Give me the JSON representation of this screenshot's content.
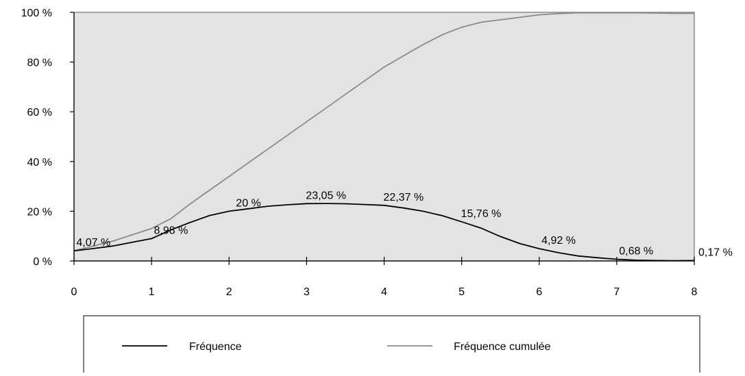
{
  "chart_data": {
    "type": "line",
    "title": "",
    "xlabel": "",
    "ylabel": "",
    "xlim": [
      0,
      8
    ],
    "ylim": [
      0,
      100
    ],
    "x_ticks": [
      "0",
      "1",
      "2",
      "3",
      "4",
      "5",
      "6",
      "7",
      "8"
    ],
    "y_ticks": [
      "0 %",
      "20 %",
      "40 %",
      "60 %",
      "80 %",
      "100 %"
    ],
    "y_tick_values": [
      0,
      20,
      40,
      60,
      80,
      100
    ],
    "grid": false,
    "plot_background": "#e3e3e3",
    "legend_position": "bottom",
    "series": [
      {
        "name": "Fréquence",
        "color": "#000000",
        "x": [
          0,
          0.25,
          0.5,
          0.75,
          1,
          1.25,
          1.5,
          1.75,
          2,
          2.25,
          2.5,
          2.75,
          3,
          3.25,
          3.5,
          3.75,
          4,
          4.25,
          4.5,
          4.75,
          5,
          5.25,
          5.5,
          5.75,
          6,
          6.25,
          6.5,
          6.75,
          7,
          7.25,
          7.5,
          7.75,
          8
        ],
        "y": [
          4.07,
          5,
          6,
          7.5,
          8.98,
          12.5,
          15.5,
          18.3,
          20,
          21,
          22,
          22.6,
          23.05,
          23.1,
          23,
          22.7,
          22.37,
          21.3,
          20,
          18.2,
          15.76,
          13.2,
          9.8,
          7,
          4.92,
          3.3,
          2,
          1.3,
          0.68,
          0.3,
          0.17,
          0.1,
          0.17
        ]
      },
      {
        "name": "Fréquence cumulée",
        "color": "#8a8a8a",
        "x": [
          0,
          0.25,
          0.5,
          0.75,
          1,
          1.25,
          1.5,
          1.75,
          2,
          2.25,
          2.5,
          2.75,
          3,
          3.25,
          3.5,
          3.75,
          4,
          4.25,
          4.5,
          4.75,
          5,
          5.25,
          5.5,
          5.75,
          6,
          6.25,
          6.5,
          6.75,
          7,
          7.25,
          7.5,
          7.75,
          8
        ],
        "y": [
          4.07,
          6,
          8,
          10.5,
          13.05,
          17,
          23,
          28.5,
          34,
          39.5,
          45,
          50.5,
          56,
          61.5,
          67,
          72.5,
          78,
          82.5,
          87,
          91,
          94,
          96,
          97,
          98,
          99,
          99.5,
          99.8,
          99.8,
          99.8,
          99.8,
          99.7,
          99.6,
          99.6
        ]
      }
    ],
    "data_labels": [
      {
        "x": 0.25,
        "y": 4.07,
        "text": "4,07 %"
      },
      {
        "x": 1.25,
        "y": 8.98,
        "text": "8,98 %"
      },
      {
        "x": 2.25,
        "y": 20,
        "text": "20 %"
      },
      {
        "x": 3.25,
        "y": 23.05,
        "text": "23,05 %"
      },
      {
        "x": 4.25,
        "y": 22.37,
        "text": "22,37 %"
      },
      {
        "x": 5.25,
        "y": 15.76,
        "text": "15,76 %"
      },
      {
        "x": 6.25,
        "y": 4.92,
        "text": "4,92 %"
      },
      {
        "x": 7.25,
        "y": 0.68,
        "text": "0,68 %"
      },
      {
        "x": 8,
        "y": 0.17,
        "text": "0,17 %"
      }
    ]
  }
}
